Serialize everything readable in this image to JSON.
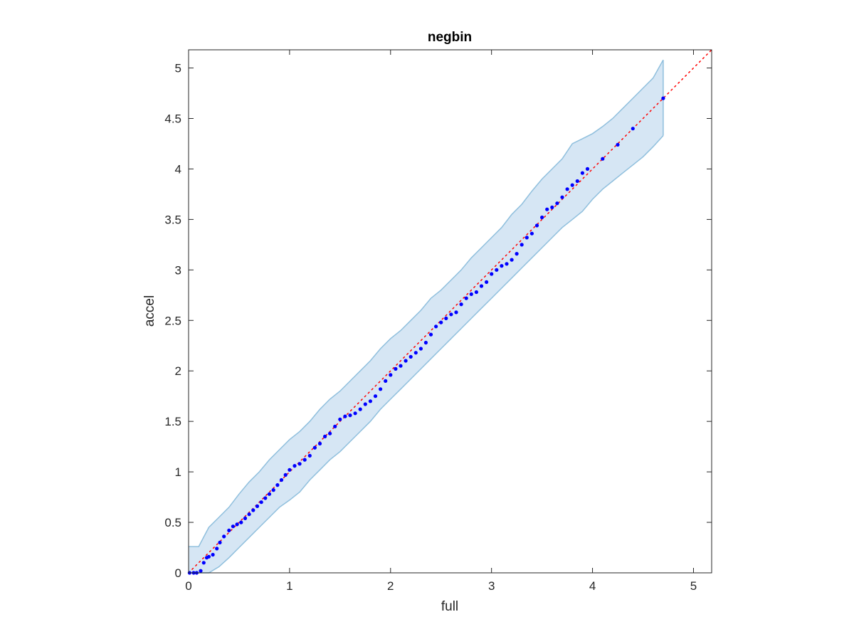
{
  "chart_data": {
    "type": "scatter",
    "title": "negbin",
    "xlabel": "full",
    "ylabel": "accel",
    "xlim": [
      0,
      5.18
    ],
    "ylim": [
      0,
      5.18
    ],
    "xticks": [
      0,
      1,
      2,
      3,
      4,
      5
    ],
    "yticks": [
      0,
      0.5,
      1,
      1.5,
      2,
      2.5,
      3,
      3.5,
      4,
      4.5,
      5
    ],
    "xtick_labels": [
      "0",
      "1",
      "2",
      "3",
      "4",
      "5"
    ],
    "ytick_labels": [
      "0",
      "0.5",
      "1",
      "1.5",
      "2",
      "2.5",
      "3",
      "3.5",
      "4",
      "4.5",
      "5"
    ],
    "grid": false,
    "box": true,
    "reference_line": {
      "style": "dotted",
      "color": "#ff0000",
      "slope": 1,
      "intercept": 0
    },
    "confidence_band": {
      "fill": "#d6e6f4",
      "edge": "#8fbfdd",
      "x": [
        0,
        0.1,
        0.2,
        0.3,
        0.4,
        0.5,
        0.6,
        0.7,
        0.8,
        0.9,
        1.0,
        1.1,
        1.2,
        1.3,
        1.4,
        1.5,
        1.6,
        1.7,
        1.8,
        1.9,
        2.0,
        2.1,
        2.2,
        2.3,
        2.4,
        2.5,
        2.6,
        2.7,
        2.8,
        2.9,
        3.0,
        3.1,
        3.2,
        3.3,
        3.4,
        3.5,
        3.6,
        3.7,
        3.8,
        3.9,
        4.0,
        4.1,
        4.2,
        4.3,
        4.4,
        4.5,
        4.6,
        4.7
      ],
      "upper": [
        0.26,
        0.26,
        0.45,
        0.55,
        0.65,
        0.78,
        0.9,
        1.0,
        1.12,
        1.22,
        1.32,
        1.4,
        1.5,
        1.62,
        1.72,
        1.8,
        1.9,
        2.0,
        2.1,
        2.22,
        2.32,
        2.4,
        2.5,
        2.6,
        2.72,
        2.8,
        2.9,
        3.0,
        3.12,
        3.22,
        3.32,
        3.42,
        3.55,
        3.65,
        3.78,
        3.9,
        4.0,
        4.1,
        4.25,
        4.3,
        4.35,
        4.42,
        4.5,
        4.6,
        4.7,
        4.8,
        4.9,
        5.08
      ],
      "lower": [
        0.0,
        0.0,
        0.0,
        0.06,
        0.15,
        0.25,
        0.35,
        0.45,
        0.55,
        0.65,
        0.72,
        0.8,
        0.92,
        1.02,
        1.12,
        1.2,
        1.3,
        1.4,
        1.5,
        1.62,
        1.72,
        1.82,
        1.92,
        2.02,
        2.12,
        2.22,
        2.32,
        2.42,
        2.52,
        2.62,
        2.72,
        2.82,
        2.92,
        3.02,
        3.12,
        3.22,
        3.32,
        3.42,
        3.5,
        3.58,
        3.7,
        3.8,
        3.88,
        3.96,
        4.04,
        4.12,
        4.22,
        4.33
      ]
    },
    "series": [
      {
        "color": "#0000ff",
        "marker": "dot",
        "x": [
          0.01,
          0.05,
          0.08,
          0.12,
          0.15,
          0.18,
          0.2,
          0.24,
          0.28,
          0.31,
          0.35,
          0.4,
          0.44,
          0.48,
          0.52,
          0.56,
          0.6,
          0.64,
          0.68,
          0.72,
          0.76,
          0.8,
          0.84,
          0.88,
          0.92,
          0.96,
          1.0,
          1.05,
          1.1,
          1.15,
          1.2,
          1.25,
          1.3,
          1.35,
          1.4,
          1.45,
          1.5,
          1.55,
          1.6,
          1.65,
          1.7,
          1.75,
          1.8,
          1.85,
          1.9,
          1.95,
          2.0,
          2.05,
          2.1,
          2.15,
          2.2,
          2.25,
          2.3,
          2.35,
          2.4,
          2.45,
          2.5,
          2.55,
          2.6,
          2.65,
          2.7,
          2.75,
          2.8,
          2.85,
          2.9,
          2.95,
          3.0,
          3.05,
          3.1,
          3.15,
          3.2,
          3.25,
          3.3,
          3.35,
          3.4,
          3.45,
          3.5,
          3.55,
          3.6,
          3.65,
          3.7,
          3.75,
          3.8,
          3.85,
          3.9,
          3.95,
          4.1,
          4.25,
          4.4,
          4.7
        ],
        "y": [
          0.0,
          0.0,
          0.0,
          0.02,
          0.1,
          0.15,
          0.16,
          0.18,
          0.24,
          0.3,
          0.36,
          0.42,
          0.46,
          0.48,
          0.5,
          0.54,
          0.58,
          0.62,
          0.66,
          0.7,
          0.74,
          0.78,
          0.82,
          0.87,
          0.92,
          0.97,
          1.02,
          1.06,
          1.08,
          1.12,
          1.16,
          1.24,
          1.28,
          1.35,
          1.38,
          1.45,
          1.52,
          1.55,
          1.56,
          1.58,
          1.62,
          1.67,
          1.7,
          1.75,
          1.82,
          1.9,
          1.96,
          2.02,
          2.05,
          2.1,
          2.14,
          2.18,
          2.22,
          2.28,
          2.36,
          2.44,
          2.48,
          2.52,
          2.56,
          2.58,
          2.66,
          2.72,
          2.76,
          2.78,
          2.84,
          2.88,
          2.96,
          3.0,
          3.04,
          3.06,
          3.1,
          3.16,
          3.25,
          3.32,
          3.36,
          3.44,
          3.52,
          3.6,
          3.62,
          3.66,
          3.72,
          3.8,
          3.84,
          3.88,
          3.96,
          4.0,
          4.1,
          4.24,
          4.4,
          4.7
        ]
      }
    ]
  }
}
